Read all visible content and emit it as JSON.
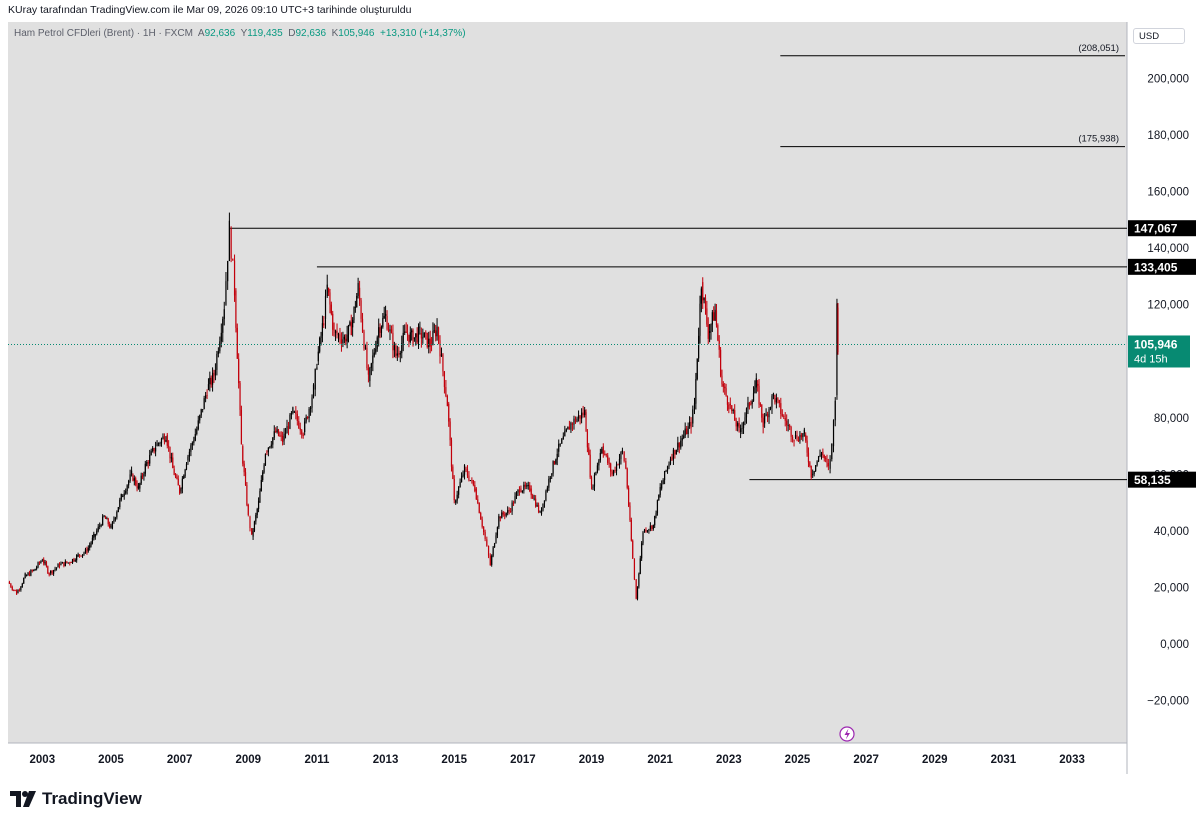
{
  "caption": "KUray tarafından TradingView.com ile Mar 09, 2026 09:10 UTC+3 tarihinde oluşturuldu",
  "legend": {
    "symbol": "Ham Petrol CFDleri (Brent) · 1H · FXCM",
    "open_key": "A",
    "open": "92,636",
    "high_key": "Y",
    "high": "119,435",
    "low_key": "D",
    "low": "92,636",
    "close_key": "K",
    "close": "105,946",
    "change": "+13,310 (+14,37%)"
  },
  "currency": "USD",
  "brand": "TradingView",
  "colors": {
    "plot_bg": "#e0e0e0",
    "axis_bg": "#ffffff",
    "up": "#000000",
    "down": "#c2000b",
    "last_price": "#078a72",
    "level_line": "#000000"
  },
  "chart_data": {
    "type": "line",
    "style": "candles",
    "log_scale": false,
    "x_unit": "year",
    "xlim": [
      2002.0,
      2034.6
    ],
    "ylim": [
      -35,
      220
    ],
    "x_ticks": [
      "2003",
      "2005",
      "2007",
      "2009",
      "2011",
      "2013",
      "2015",
      "2017",
      "2019",
      "2021",
      "2023",
      "2025",
      "2027",
      "2029",
      "2031",
      "2033"
    ],
    "y_ticks": [
      {
        "value": 200,
        "label": "200,000"
      },
      {
        "value": 180,
        "label": "180,000"
      },
      {
        "value": 160,
        "label": "160,000"
      },
      {
        "value": 140,
        "label": "140,000"
      },
      {
        "value": 120,
        "label": "120,000"
      },
      {
        "value": 80,
        "label": "80,000"
      },
      {
        "value": 60,
        "label": "60,000"
      },
      {
        "value": 40,
        "label": "40,000"
      },
      {
        "value": 20,
        "label": "20,000"
      },
      {
        "value": 0,
        "label": "0,000"
      },
      {
        "value": -20,
        "label": "−20,000"
      }
    ],
    "series": [
      {
        "points": [
          [
            2002.0,
            22
          ],
          [
            2002.25,
            18
          ],
          [
            2002.5,
            24
          ],
          [
            2002.75,
            26
          ],
          [
            2003.0,
            30
          ],
          [
            2003.2,
            25
          ],
          [
            2003.5,
            28
          ],
          [
            2003.8,
            29
          ],
          [
            2004.0,
            31
          ],
          [
            2004.3,
            33
          ],
          [
            2004.5,
            38
          ],
          [
            2004.8,
            45
          ],
          [
            2005.0,
            41
          ],
          [
            2005.3,
            52
          ],
          [
            2005.6,
            60
          ],
          [
            2005.8,
            55
          ],
          [
            2006.0,
            63
          ],
          [
            2006.3,
            70
          ],
          [
            2006.6,
            74
          ],
          [
            2006.8,
            62
          ],
          [
            2007.0,
            54
          ],
          [
            2007.2,
            65
          ],
          [
            2007.5,
            76
          ],
          [
            2007.8,
            90
          ],
          [
            2008.0,
            95
          ],
          [
            2008.3,
            120
          ],
          [
            2008.45,
            147
          ],
          [
            2008.6,
            125
          ],
          [
            2008.8,
            70
          ],
          [
            2009.0,
            45
          ],
          [
            2009.1,
            38
          ],
          [
            2009.3,
            50
          ],
          [
            2009.5,
            68
          ],
          [
            2009.8,
            75
          ],
          [
            2010.0,
            72
          ],
          [
            2010.3,
            82
          ],
          [
            2010.6,
            75
          ],
          [
            2010.9,
            90
          ],
          [
            2011.0,
            100
          ],
          [
            2011.2,
            115
          ],
          [
            2011.3,
            126
          ],
          [
            2011.5,
            110
          ],
          [
            2011.8,
            108
          ],
          [
            2012.0,
            112
          ],
          [
            2012.2,
            126
          ],
          [
            2012.5,
            93
          ],
          [
            2012.8,
            112
          ],
          [
            2013.0,
            116
          ],
          [
            2013.3,
            102
          ],
          [
            2013.6,
            110
          ],
          [
            2013.8,
            108
          ],
          [
            2014.0,
            110
          ],
          [
            2014.3,
            106
          ],
          [
            2014.5,
            112
          ],
          [
            2014.8,
            85
          ],
          [
            2015.0,
            50
          ],
          [
            2015.3,
            62
          ],
          [
            2015.6,
            55
          ],
          [
            2015.9,
            37
          ],
          [
            2016.05,
            28
          ],
          [
            2016.3,
            45
          ],
          [
            2016.6,
            47
          ],
          [
            2016.9,
            55
          ],
          [
            2017.2,
            55
          ],
          [
            2017.5,
            46
          ],
          [
            2017.8,
            60
          ],
          [
            2018.0,
            68
          ],
          [
            2018.4,
            78
          ],
          [
            2018.8,
            82
          ],
          [
            2019.0,
            55
          ],
          [
            2019.3,
            70
          ],
          [
            2019.6,
            60
          ],
          [
            2019.9,
            68
          ],
          [
            2020.0,
            62
          ],
          [
            2020.2,
            30
          ],
          [
            2020.3,
            16
          ],
          [
            2020.5,
            40
          ],
          [
            2020.8,
            42
          ],
          [
            2021.0,
            55
          ],
          [
            2021.3,
            66
          ],
          [
            2021.6,
            72
          ],
          [
            2021.9,
            78
          ],
          [
            2022.0,
            85
          ],
          [
            2022.2,
            128
          ],
          [
            2022.4,
            110
          ],
          [
            2022.6,
            118
          ],
          [
            2022.8,
            92
          ],
          [
            2023.0,
            85
          ],
          [
            2023.3,
            75
          ],
          [
            2023.6,
            85
          ],
          [
            2023.8,
            92
          ],
          [
            2024.0,
            78
          ],
          [
            2024.3,
            88
          ],
          [
            2024.6,
            80
          ],
          [
            2024.9,
            73
          ],
          [
            2025.2,
            74
          ],
          [
            2025.4,
            60
          ],
          [
            2025.7,
            68
          ],
          [
            2025.9,
            62
          ],
          [
            2026.0,
            70
          ],
          [
            2026.1,
            88
          ],
          [
            2026.15,
            119
          ],
          [
            2026.18,
            105.9
          ]
        ]
      }
    ],
    "levels": [
      {
        "value": 208.051,
        "label": "(208,051)",
        "style": "projection",
        "x_start": 2024.5
      },
      {
        "value": 175.938,
        "label": "(175,938)",
        "style": "projection",
        "x_start": 2024.5
      },
      {
        "value": 147.067,
        "label": "147,067",
        "style": "marker",
        "x_start": 2008.45
      },
      {
        "value": 133.405,
        "label": "133,405",
        "style": "marker",
        "x_start": 2011.0
      },
      {
        "value": 58.135,
        "label": "58,135",
        "style": "marker",
        "x_start": 2023.6
      }
    ],
    "last_price": {
      "value": 105.946,
      "label": "105,946",
      "countdown": "4d 15h"
    }
  }
}
